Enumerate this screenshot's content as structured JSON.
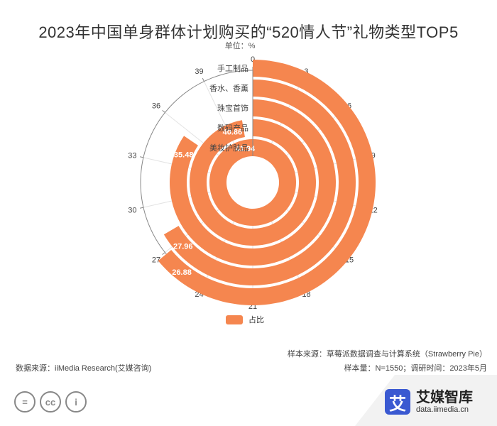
{
  "header": {
    "title": "2023年中国单身群体计划购买的“520情人节”礼物类型TOP5",
    "unit": "单位：%"
  },
  "chart_data": {
    "type": "polar-bar",
    "categories": [
      "手工制品",
      "香水、香薰",
      "珠宝首饰",
      "数码产品",
      "美妆护肤品"
    ],
    "values": [
      26.88,
      27.96,
      35.48,
      40.86,
      41.94
    ],
    "angle_axis": {
      "min": 0,
      "max": 42,
      "ticks": [
        "0",
        "3",
        "6",
        "9",
        "12",
        "15",
        "18",
        "21",
        "24",
        "27",
        "30",
        "33",
        "36",
        "39"
      ]
    },
    "series": [
      {
        "name": "占比",
        "color": "#f5864f"
      }
    ]
  },
  "legend": {
    "label": "占比",
    "color": "#f5864f"
  },
  "footer": {
    "sample_source": "样本来源：草莓派数据调查与计算系统（Strawberry Pie）",
    "data_source": "数据来源：iiMedia Research(艾媒咨询)",
    "sample_info": "样本量：N=1550；调研时间：2023年5月"
  },
  "brand": {
    "logo_char": "艾",
    "name": "艾媒智库",
    "url": "data.iimedia.cn"
  },
  "license_icons": [
    {
      "icon": "equals-icon",
      "glyph": "="
    },
    {
      "icon": "cc-icon",
      "glyph": "cc"
    },
    {
      "icon": "person-icon",
      "glyph": "i"
    }
  ]
}
